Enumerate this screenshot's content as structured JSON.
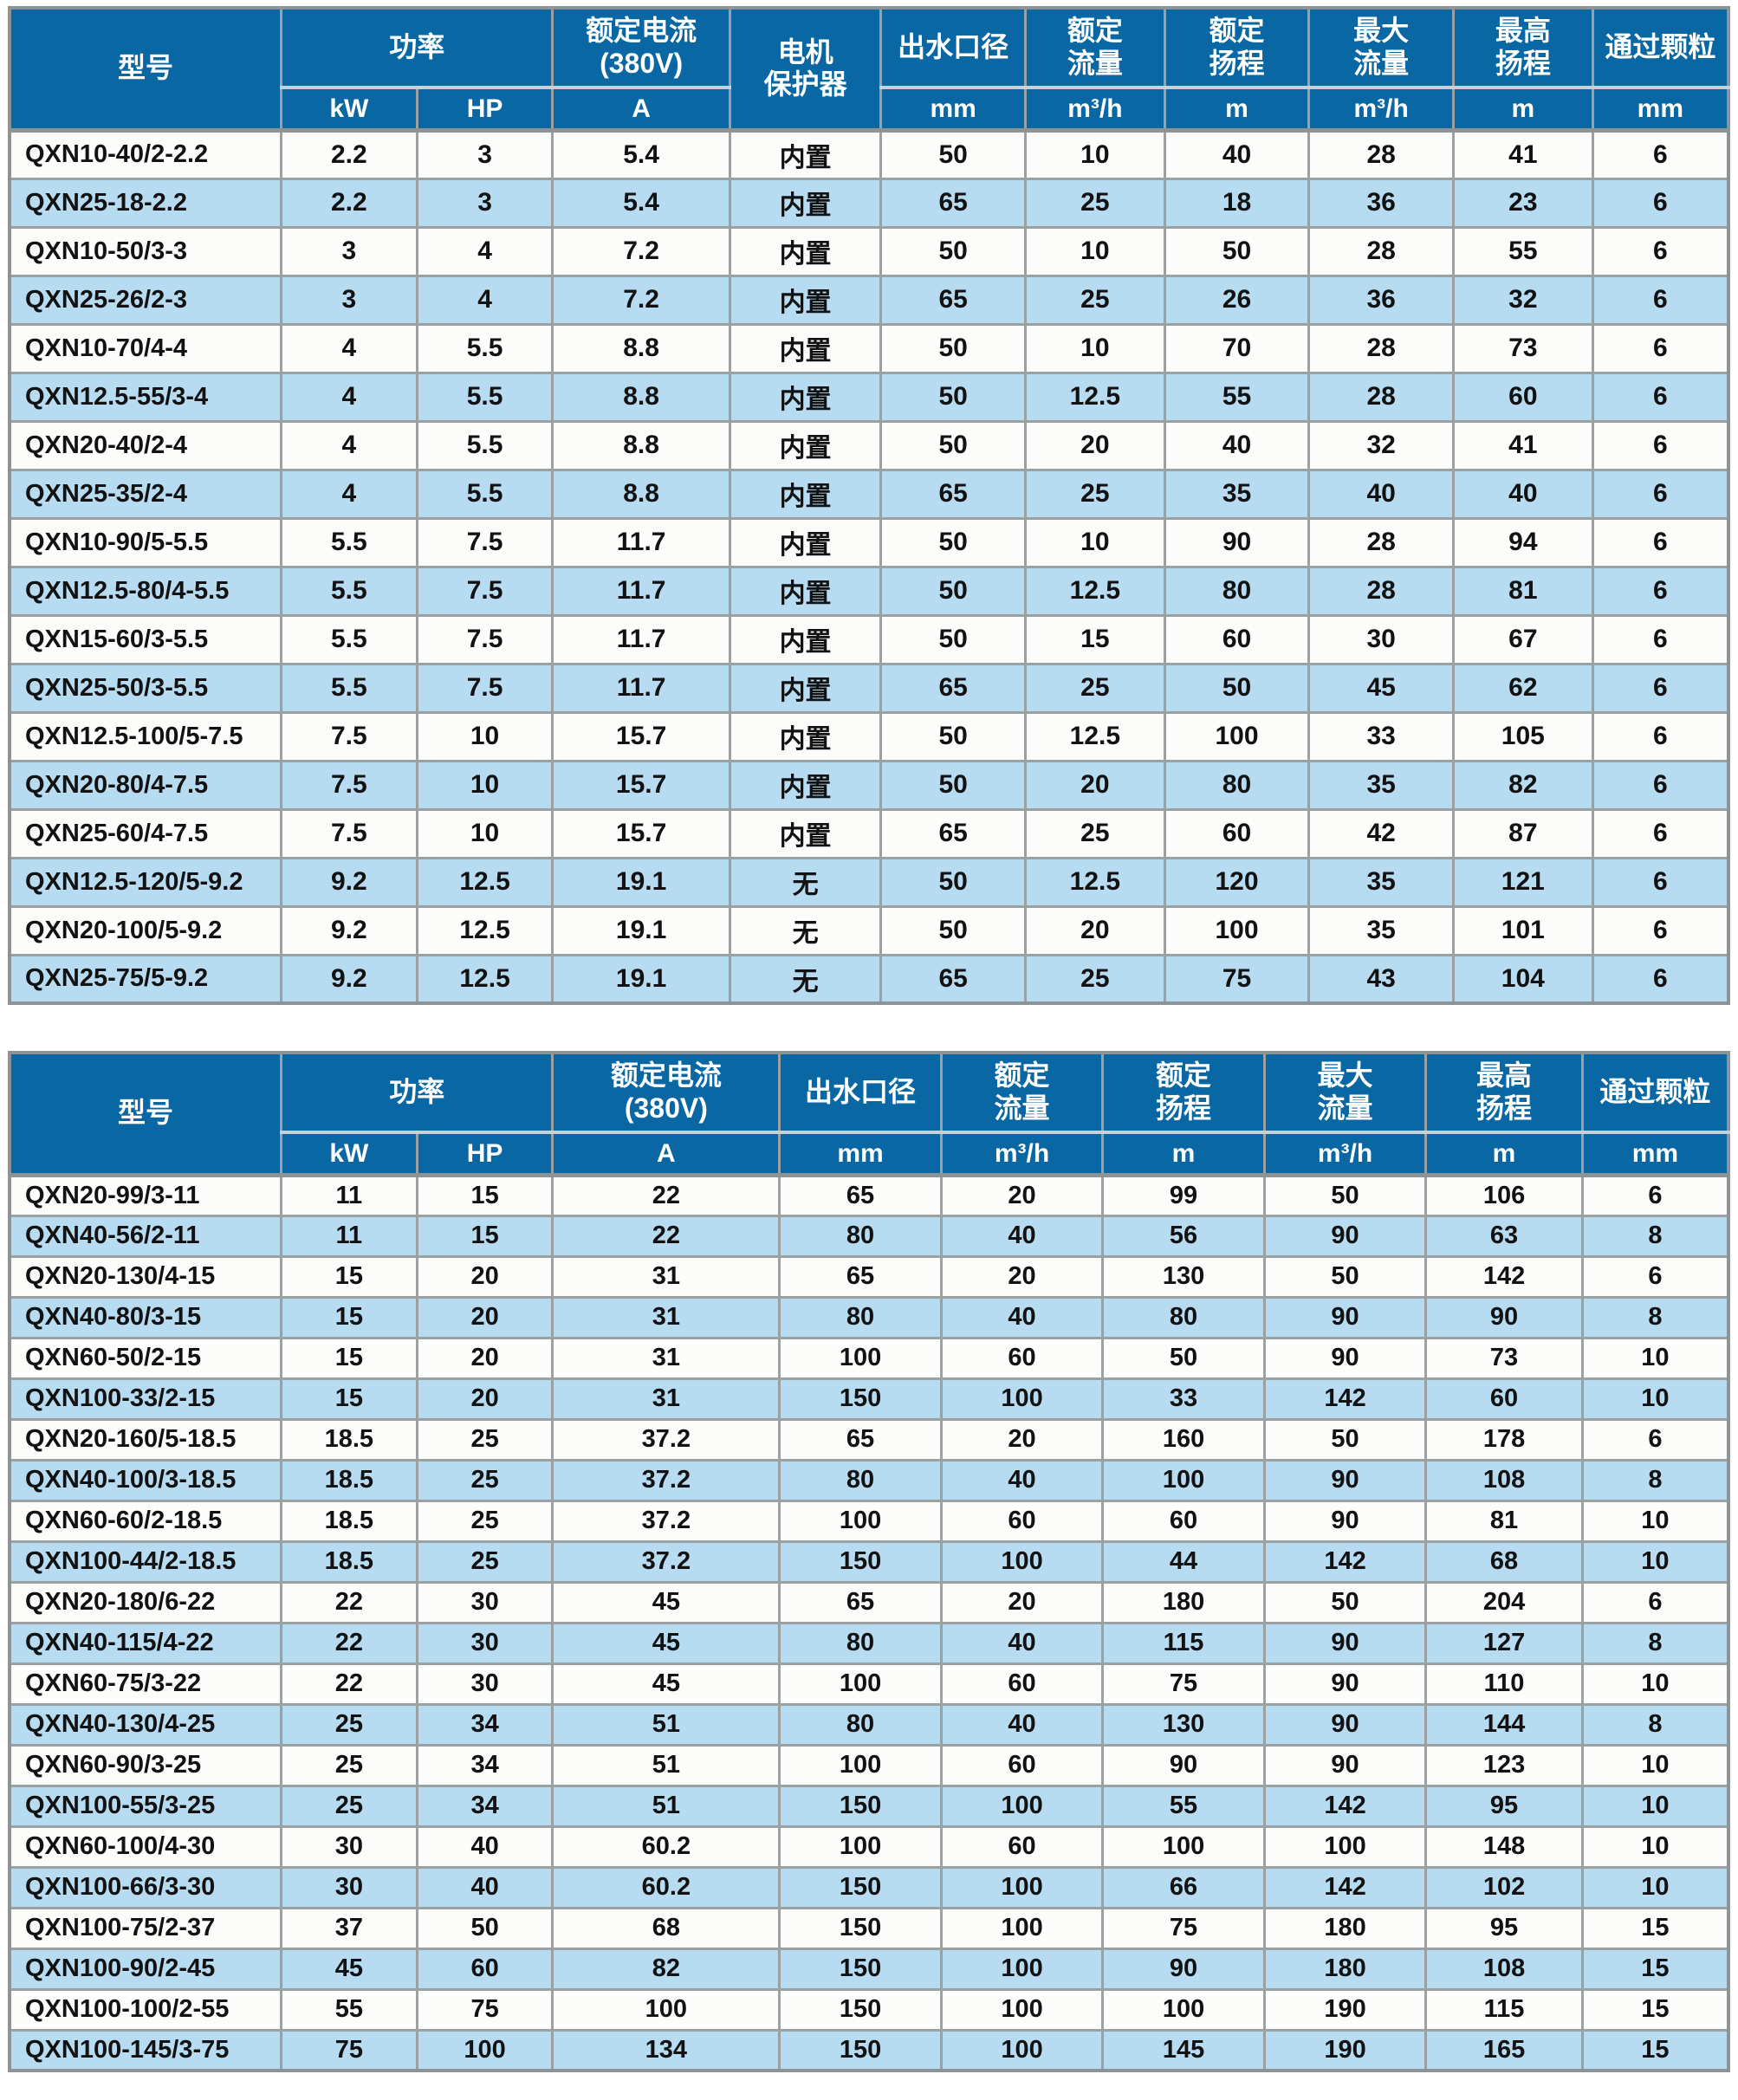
{
  "colors": {
    "header_bg": "#0967A3",
    "header_text": "#FFFFFF",
    "row_bg": "#FCFCFA",
    "row_alt_bg": "#B7DCF2",
    "cell_text": "#121212",
    "grid_line": "#9BA1A3",
    "grid_light": "#C6D1D8",
    "grid_heavy": "#8E9496"
  },
  "table1": {
    "headers": {
      "model": "型号",
      "power": "功率",
      "rated_current": [
        "额定电流",
        "(380V)"
      ],
      "protector": [
        "电机",
        "保护器"
      ],
      "outlet": "出水口径",
      "rated_flow": [
        "额定",
        "流量"
      ],
      "rated_head": [
        "额定",
        "扬程"
      ],
      "max_flow": [
        "最大",
        "流量"
      ],
      "max_head": [
        "最高",
        "扬程"
      ],
      "particle": "通过颗粒"
    },
    "units": {
      "kw": "kW",
      "hp": "HP",
      "current": "A",
      "outlet": "mm",
      "rated_flow": "m³/h",
      "rated_head": "m",
      "max_flow": "m³/h",
      "max_head": "m",
      "particle": "mm"
    },
    "rows": [
      [
        "QXN10-40/2-2.2",
        "2.2",
        "3",
        "5.4",
        "内置",
        "50",
        "10",
        "40",
        "28",
        "41",
        "6"
      ],
      [
        "QXN25-18-2.2",
        "2.2",
        "3",
        "5.4",
        "内置",
        "65",
        "25",
        "18",
        "36",
        "23",
        "6"
      ],
      [
        "QXN10-50/3-3",
        "3",
        "4",
        "7.2",
        "内置",
        "50",
        "10",
        "50",
        "28",
        "55",
        "6"
      ],
      [
        "QXN25-26/2-3",
        "3",
        "4",
        "7.2",
        "内置",
        "65",
        "25",
        "26",
        "36",
        "32",
        "6"
      ],
      [
        "QXN10-70/4-4",
        "4",
        "5.5",
        "8.8",
        "内置",
        "50",
        "10",
        "70",
        "28",
        "73",
        "6"
      ],
      [
        "QXN12.5-55/3-4",
        "4",
        "5.5",
        "8.8",
        "内置",
        "50",
        "12.5",
        "55",
        "28",
        "60",
        "6"
      ],
      [
        "QXN20-40/2-4",
        "4",
        "5.5",
        "8.8",
        "内置",
        "50",
        "20",
        "40",
        "32",
        "41",
        "6"
      ],
      [
        "QXN25-35/2-4",
        "4",
        "5.5",
        "8.8",
        "内置",
        "65",
        "25",
        "35",
        "40",
        "40",
        "6"
      ],
      [
        "QXN10-90/5-5.5",
        "5.5",
        "7.5",
        "11.7",
        "内置",
        "50",
        "10",
        "90",
        "28",
        "94",
        "6"
      ],
      [
        "QXN12.5-80/4-5.5",
        "5.5",
        "7.5",
        "11.7",
        "内置",
        "50",
        "12.5",
        "80",
        "28",
        "81",
        "6"
      ],
      [
        "QXN15-60/3-5.5",
        "5.5",
        "7.5",
        "11.7",
        "内置",
        "50",
        "15",
        "60",
        "30",
        "67",
        "6"
      ],
      [
        "QXN25-50/3-5.5",
        "5.5",
        "7.5",
        "11.7",
        "内置",
        "65",
        "25",
        "50",
        "45",
        "62",
        "6"
      ],
      [
        "QXN12.5-100/5-7.5",
        "7.5",
        "10",
        "15.7",
        "内置",
        "50",
        "12.5",
        "100",
        "33",
        "105",
        "6"
      ],
      [
        "QXN20-80/4-7.5",
        "7.5",
        "10",
        "15.7",
        "内置",
        "50",
        "20",
        "80",
        "35",
        "82",
        "6"
      ],
      [
        "QXN25-60/4-7.5",
        "7.5",
        "10",
        "15.7",
        "内置",
        "65",
        "25",
        "60",
        "42",
        "87",
        "6"
      ],
      [
        "QXN12.5-120/5-9.2",
        "9.2",
        "12.5",
        "19.1",
        "无",
        "50",
        "12.5",
        "120",
        "35",
        "121",
        "6"
      ],
      [
        "QXN20-100/5-9.2",
        "9.2",
        "12.5",
        "19.1",
        "无",
        "50",
        "20",
        "100",
        "35",
        "101",
        "6"
      ],
      [
        "QXN25-75/5-9.2",
        "9.2",
        "12.5",
        "19.1",
        "无",
        "65",
        "25",
        "75",
        "43",
        "104",
        "6"
      ]
    ]
  },
  "table2": {
    "headers": {
      "model": "型号",
      "power": "功率",
      "rated_current": [
        "额定电流",
        "(380V)"
      ],
      "outlet": "出水口径",
      "rated_flow": [
        "额定",
        "流量"
      ],
      "rated_head": [
        "额定",
        "扬程"
      ],
      "max_flow": [
        "最大",
        "流量"
      ],
      "max_head": [
        "最高",
        "扬程"
      ],
      "particle": "通过颗粒"
    },
    "units": {
      "kw": "kW",
      "hp": "HP",
      "current": "A",
      "outlet": "mm",
      "rated_flow": "m³/h",
      "rated_head": "m",
      "max_flow": "m³/h",
      "max_head": "m",
      "particle": "mm"
    },
    "rows": [
      [
        "QXN20-99/3-11",
        "11",
        "15",
        "22",
        "65",
        "20",
        "99",
        "50",
        "106",
        "6"
      ],
      [
        "QXN40-56/2-11",
        "11",
        "15",
        "22",
        "80",
        "40",
        "56",
        "90",
        "63",
        "8"
      ],
      [
        "QXN20-130/4-15",
        "15",
        "20",
        "31",
        "65",
        "20",
        "130",
        "50",
        "142",
        "6"
      ],
      [
        "QXN40-80/3-15",
        "15",
        "20",
        "31",
        "80",
        "40",
        "80",
        "90",
        "90",
        "8"
      ],
      [
        "QXN60-50/2-15",
        "15",
        "20",
        "31",
        "100",
        "60",
        "50",
        "90",
        "73",
        "10"
      ],
      [
        "QXN100-33/2-15",
        "15",
        "20",
        "31",
        "150",
        "100",
        "33",
        "142",
        "60",
        "10"
      ],
      [
        "QXN20-160/5-18.5",
        "18.5",
        "25",
        "37.2",
        "65",
        "20",
        "160",
        "50",
        "178",
        "6"
      ],
      [
        "QXN40-100/3-18.5",
        "18.5",
        "25",
        "37.2",
        "80",
        "40",
        "100",
        "90",
        "108",
        "8"
      ],
      [
        "QXN60-60/2-18.5",
        "18.5",
        "25",
        "37.2",
        "100",
        "60",
        "60",
        "90",
        "81",
        "10"
      ],
      [
        "QXN100-44/2-18.5",
        "18.5",
        "25",
        "37.2",
        "150",
        "100",
        "44",
        "142",
        "68",
        "10"
      ],
      [
        "QXN20-180/6-22",
        "22",
        "30",
        "45",
        "65",
        "20",
        "180",
        "50",
        "204",
        "6"
      ],
      [
        "QXN40-115/4-22",
        "22",
        "30",
        "45",
        "80",
        "40",
        "115",
        "90",
        "127",
        "8"
      ],
      [
        "QXN60-75/3-22",
        "22",
        "30",
        "45",
        "100",
        "60",
        "75",
        "90",
        "110",
        "10"
      ],
      [
        "QXN40-130/4-25",
        "25",
        "34",
        "51",
        "80",
        "40",
        "130",
        "90",
        "144",
        "8"
      ],
      [
        "QXN60-90/3-25",
        "25",
        "34",
        "51",
        "100",
        "60",
        "90",
        "90",
        "123",
        "10"
      ],
      [
        "QXN100-55/3-25",
        "25",
        "34",
        "51",
        "150",
        "100",
        "55",
        "142",
        "95",
        "10"
      ],
      [
        "QXN60-100/4-30",
        "30",
        "40",
        "60.2",
        "100",
        "60",
        "100",
        "100",
        "148",
        "10"
      ],
      [
        "QXN100-66/3-30",
        "30",
        "40",
        "60.2",
        "150",
        "100",
        "66",
        "142",
        "102",
        "10"
      ],
      [
        "QXN100-75/2-37",
        "37",
        "50",
        "68",
        "150",
        "100",
        "75",
        "180",
        "95",
        "15"
      ],
      [
        "QXN100-90/2-45",
        "45",
        "60",
        "82",
        "150",
        "100",
        "90",
        "180",
        "108",
        "15"
      ],
      [
        "QXN100-100/2-55",
        "55",
        "75",
        "100",
        "150",
        "100",
        "100",
        "190",
        "115",
        "15"
      ],
      [
        "QXN100-145/3-75",
        "75",
        "100",
        "134",
        "150",
        "100",
        "145",
        "190",
        "165",
        "15"
      ]
    ]
  }
}
